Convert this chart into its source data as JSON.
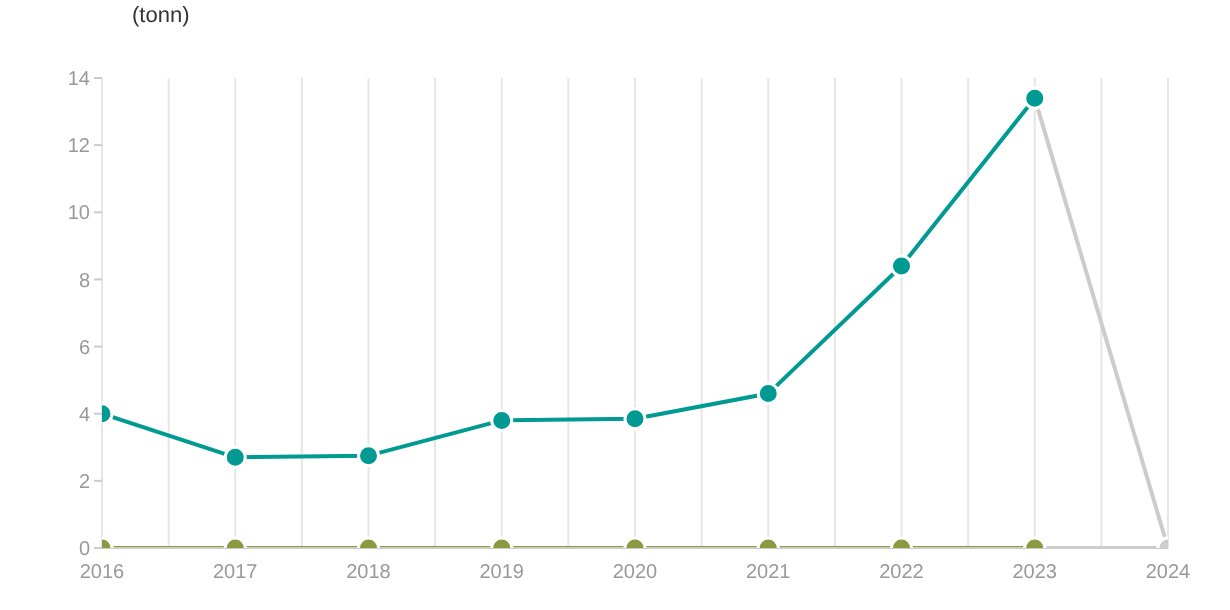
{
  "chart_data": {
    "type": "line",
    "ylabel": "(tonn)",
    "x": [
      2016,
      2017,
      2018,
      2019,
      2020,
      2021,
      2022,
      2023,
      2024
    ],
    "series": [
      {
        "color": "#cccccc",
        "values": [
          null,
          null,
          null,
          null,
          null,
          null,
          null,
          13.4,
          0
        ]
      },
      {
        "color": "#cccccc",
        "values": [
          null,
          null,
          null,
          null,
          null,
          null,
          null,
          0,
          0
        ]
      },
      {
        "color": "#009a93",
        "values": [
          4.0,
          2.7,
          2.75,
          3.8,
          3.85,
          4.6,
          8.4,
          13.4,
          null
        ]
      },
      {
        "color": "#8a9a3f",
        "values": [
          0,
          0,
          0,
          0,
          0,
          0,
          0,
          0,
          null
        ]
      }
    ],
    "xlim": [
      2016,
      2024
    ],
    "xticks": [
      2016,
      {
        "value": 2016.5,
        "label": null
      },
      2017,
      {
        "value": 2017.5,
        "label": null
      },
      2018,
      {
        "value": 2018.5,
        "label": null
      },
      2019,
      {
        "value": 2019.5,
        "label": null
      },
      2020,
      {
        "value": 2020.5,
        "label": null
      },
      2021,
      {
        "value": 2021.5,
        "label": null
      },
      2022,
      {
        "value": 2022.5,
        "label": null
      },
      2023,
      {
        "value": 2023.5,
        "label": null
      },
      2024
    ],
    "ylim": [
      0,
      14
    ],
    "yticks": [
      0,
      2,
      4,
      6,
      8,
      10,
      12,
      14
    ],
    "grid": "x",
    "marker": "circle",
    "line_style": "solid"
  }
}
